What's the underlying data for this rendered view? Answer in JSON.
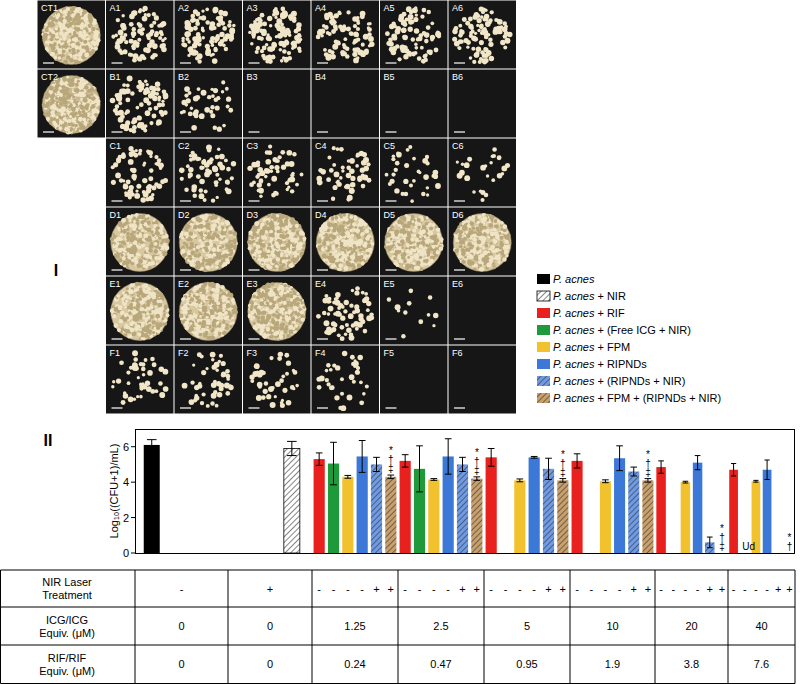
{
  "panel_i": {
    "label": "I",
    "plates": [
      [
        {
          "label": "CT1",
          "colonies": 500
        },
        {
          "label": "A1",
          "colonies": 90
        },
        {
          "label": "A2",
          "colonies": 100
        },
        {
          "label": "A3",
          "colonies": 110
        },
        {
          "label": "A4",
          "colonies": 90
        },
        {
          "label": "A5",
          "colonies": 80
        },
        {
          "label": "A6",
          "colonies": 100
        }
      ],
      [
        {
          "label": "CT2",
          "colonies": 500
        },
        {
          "label": "B1",
          "colonies": 90
        },
        {
          "label": "B2",
          "colonies": 40
        },
        {
          "label": "B3",
          "colonies": 0
        },
        {
          "label": "B4",
          "colonies": 0
        },
        {
          "label": "B5",
          "colonies": 0
        },
        {
          "label": "B6",
          "colonies": 0
        }
      ],
      [
        null,
        {
          "label": "C1",
          "colonies": 70
        },
        {
          "label": "C2",
          "colonies": 60
        },
        {
          "label": "C3",
          "colonies": 55
        },
        {
          "label": "C4",
          "colonies": 50
        },
        {
          "label": "C5",
          "colonies": 35
        },
        {
          "label": "C6",
          "colonies": 25
        }
      ],
      [
        null,
        {
          "label": "D1",
          "colonies": 350
        },
        {
          "label": "D2",
          "colonies": 400
        },
        {
          "label": "D3",
          "colonies": 450
        },
        {
          "label": "D4",
          "colonies": 450
        },
        {
          "label": "D5",
          "colonies": 400
        },
        {
          "label": "D6",
          "colonies": 400
        }
      ],
      [
        null,
        {
          "label": "E1",
          "colonies": 350
        },
        {
          "label": "E2",
          "colonies": 400
        },
        {
          "label": "E3",
          "colonies": 450
        },
        {
          "label": "E4",
          "colonies": 70
        },
        {
          "label": "E5",
          "colonies": 12
        },
        {
          "label": "E6",
          "colonies": 0
        }
      ],
      [
        null,
        {
          "label": "F1",
          "colonies": 45
        },
        {
          "label": "F2",
          "colonies": 45
        },
        {
          "label": "F3",
          "colonies": 40
        },
        {
          "label": "F4",
          "colonies": 35
        },
        {
          "label": "F5",
          "colonies": 0
        },
        {
          "label": "F6",
          "colonies": 0
        }
      ]
    ]
  },
  "chart_data": {
    "type": "bar",
    "panel_label": "II",
    "y_label": "Log₁₀((CFU+1)/mL)",
    "categories": [
      null,
      null,
      null,
      null,
      null,
      null,
      null,
      null
    ],
    "ylim": [
      0,
      7
    ],
    "yticks": [
      0,
      2,
      4,
      6
    ],
    "grid": false,
    "legend": "right",
    "tick_labels": "y",
    "series": [
      {
        "name": "P. acnes",
        "color": "#000000",
        "line_style": "solid",
        "values": [
          6.1,
          null,
          null,
          null,
          null,
          null,
          null,
          null
        ],
        "errors": [
          0.3,
          null,
          null,
          null,
          null,
          null,
          null,
          null
        ]
      },
      {
        "name": "P. acnes + NIR",
        "color": "#ffffff",
        "line_style": "hatch",
        "values": [
          null,
          5.9,
          null,
          null,
          null,
          null,
          null,
          null
        ],
        "errors": [
          null,
          0.4,
          null,
          null,
          null,
          null,
          null,
          null
        ]
      },
      {
        "name": "P. acnes + RIF",
        "color": "#e8201e",
        "line_style": "solid",
        "values": [
          null,
          null,
          5.3,
          5.2,
          5.4,
          5.2,
          4.85,
          4.7
        ],
        "errors": [
          null,
          null,
          0.35,
          0.35,
          0.5,
          0.4,
          0.35,
          0.35
        ]
      },
      {
        "name": "P. acnes + (Free ICG + NIR)",
        "color": "#1f9a3a",
        "line_style": "solid",
        "values": [
          null,
          null,
          5.05,
          4.75,
          null,
          null,
          null,
          null
        ],
        "errors": [
          null,
          null,
          1.2,
          1.3,
          null,
          null,
          null,
          null
        ]
      },
      {
        "name": "P. acnes + FPM",
        "color": "#f2c12e",
        "line_style": "solid",
        "values": [
          null,
          null,
          4.3,
          4.15,
          4.1,
          4.05,
          4.0,
          4.05
        ],
        "errors": [
          null,
          null,
          0.08,
          0.05,
          0.08,
          0.08,
          0.05,
          0.05
        ]
      },
      {
        "name": "P. acnes + RIPNDs",
        "color": "#3c78d8",
        "line_style": "solid",
        "values": [
          null,
          null,
          5.45,
          5.45,
          5.4,
          5.35,
          5.1,
          4.7
        ],
        "errors": [
          null,
          null,
          0.9,
          1.0,
          0.05,
          0.7,
          0.4,
          0.55
        ]
      },
      {
        "name": "P. acnes + (RIPNDs + NIR)",
        "color": "#6f9be6",
        "line_style": "hatch",
        "values": [
          null,
          null,
          5.0,
          5.0,
          4.75,
          4.6,
          0.6,
          null
        ],
        "errors": [
          null,
          null,
          0.4,
          0.4,
          0.6,
          0.25,
          0.3,
          null
        ]
      },
      {
        "name": "P. acnes + FPM + (RIPNDs + NIR)",
        "color": "#c9a06c",
        "line_style": "hatch",
        "values": [
          null,
          null,
          4.3,
          4.2,
          4.1,
          4.1,
          0,
          0
        ],
        "errors": [
          null,
          null,
          0.1,
          0.1,
          0.1,
          0.1,
          null,
          null
        ]
      }
    ],
    "annotations": [
      {
        "text": "*†‡",
        "series": "P. acnes + FPM + (RIPNDs + NIR)",
        "index": 2
      },
      {
        "text": "*†‡",
        "series": "P. acnes + FPM + (RIPNDs + NIR)",
        "index": 3
      },
      {
        "text": "*†‡",
        "series": "P. acnes + FPM + (RIPNDs + NIR)",
        "index": 4
      },
      {
        "text": "*†‡",
        "series": "P. acnes + FPM + (RIPNDs + NIR)",
        "index": 5
      },
      {
        "text": "*†‡",
        "series": "P. acnes + FPM + (RIPNDs + NIR)",
        "index": 6
      },
      {
        "text": "*†",
        "series": "P. acnes + FPM + (RIPNDs + NIR)",
        "index": 7
      },
      {
        "text": "Ud",
        "series": "P. acnes + (Free ICG + NIR)",
        "index": 7
      }
    ]
  },
  "table": {
    "rows": [
      {
        "label": [
          "NIR Laser",
          "Treatment"
        ],
        "cells": [
          "-",
          "+",
          [
            "-",
            "-",
            "-",
            "-",
            "+",
            "+"
          ],
          [
            "-",
            "-",
            "-",
            "-",
            "+",
            "+"
          ],
          [
            "-",
            "-",
            "-",
            "-",
            "+",
            "+"
          ],
          [
            "-",
            "-",
            "-",
            "-",
            "+",
            "+"
          ],
          [
            "-",
            "-",
            "-",
            "-",
            "+",
            "+"
          ],
          [
            "-",
            "-",
            "-",
            "-",
            "+",
            "+"
          ]
        ]
      },
      {
        "label": [
          "ICG/ICG",
          "Equiv. (μM)"
        ],
        "cells": [
          0,
          0,
          1.25,
          2.5,
          5,
          10,
          20,
          40
        ]
      },
      {
        "label": [
          "RIF/RIF",
          "Equiv. (μM)"
        ],
        "cells": [
          0,
          0,
          0.24,
          0.47,
          0.95,
          1.9,
          3.8,
          7.6
        ]
      }
    ]
  }
}
